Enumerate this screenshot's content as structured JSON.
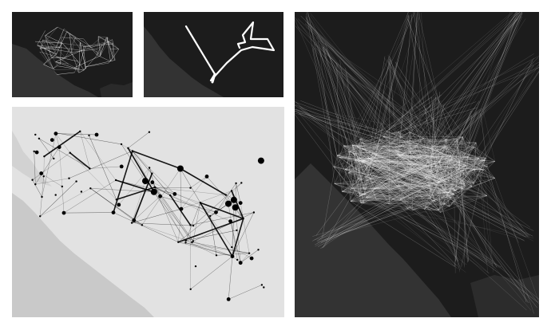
{
  "colors": {
    "dark_panel_bg": "#1c1c1c",
    "dark_land": "#333333",
    "light_panel_bg": "#e2e2e2",
    "light_land": "#c9c9c9",
    "edge_light": "#ffffff",
    "edge_dark": "#000000"
  },
  "panels": [
    {
      "id": "network-overview-dark",
      "theme": "dark"
    },
    {
      "id": "single-route-dark",
      "theme": "dark"
    },
    {
      "id": "weighted-network-light",
      "theme": "light"
    },
    {
      "id": "dense-network-dark",
      "theme": "dark"
    }
  ]
}
